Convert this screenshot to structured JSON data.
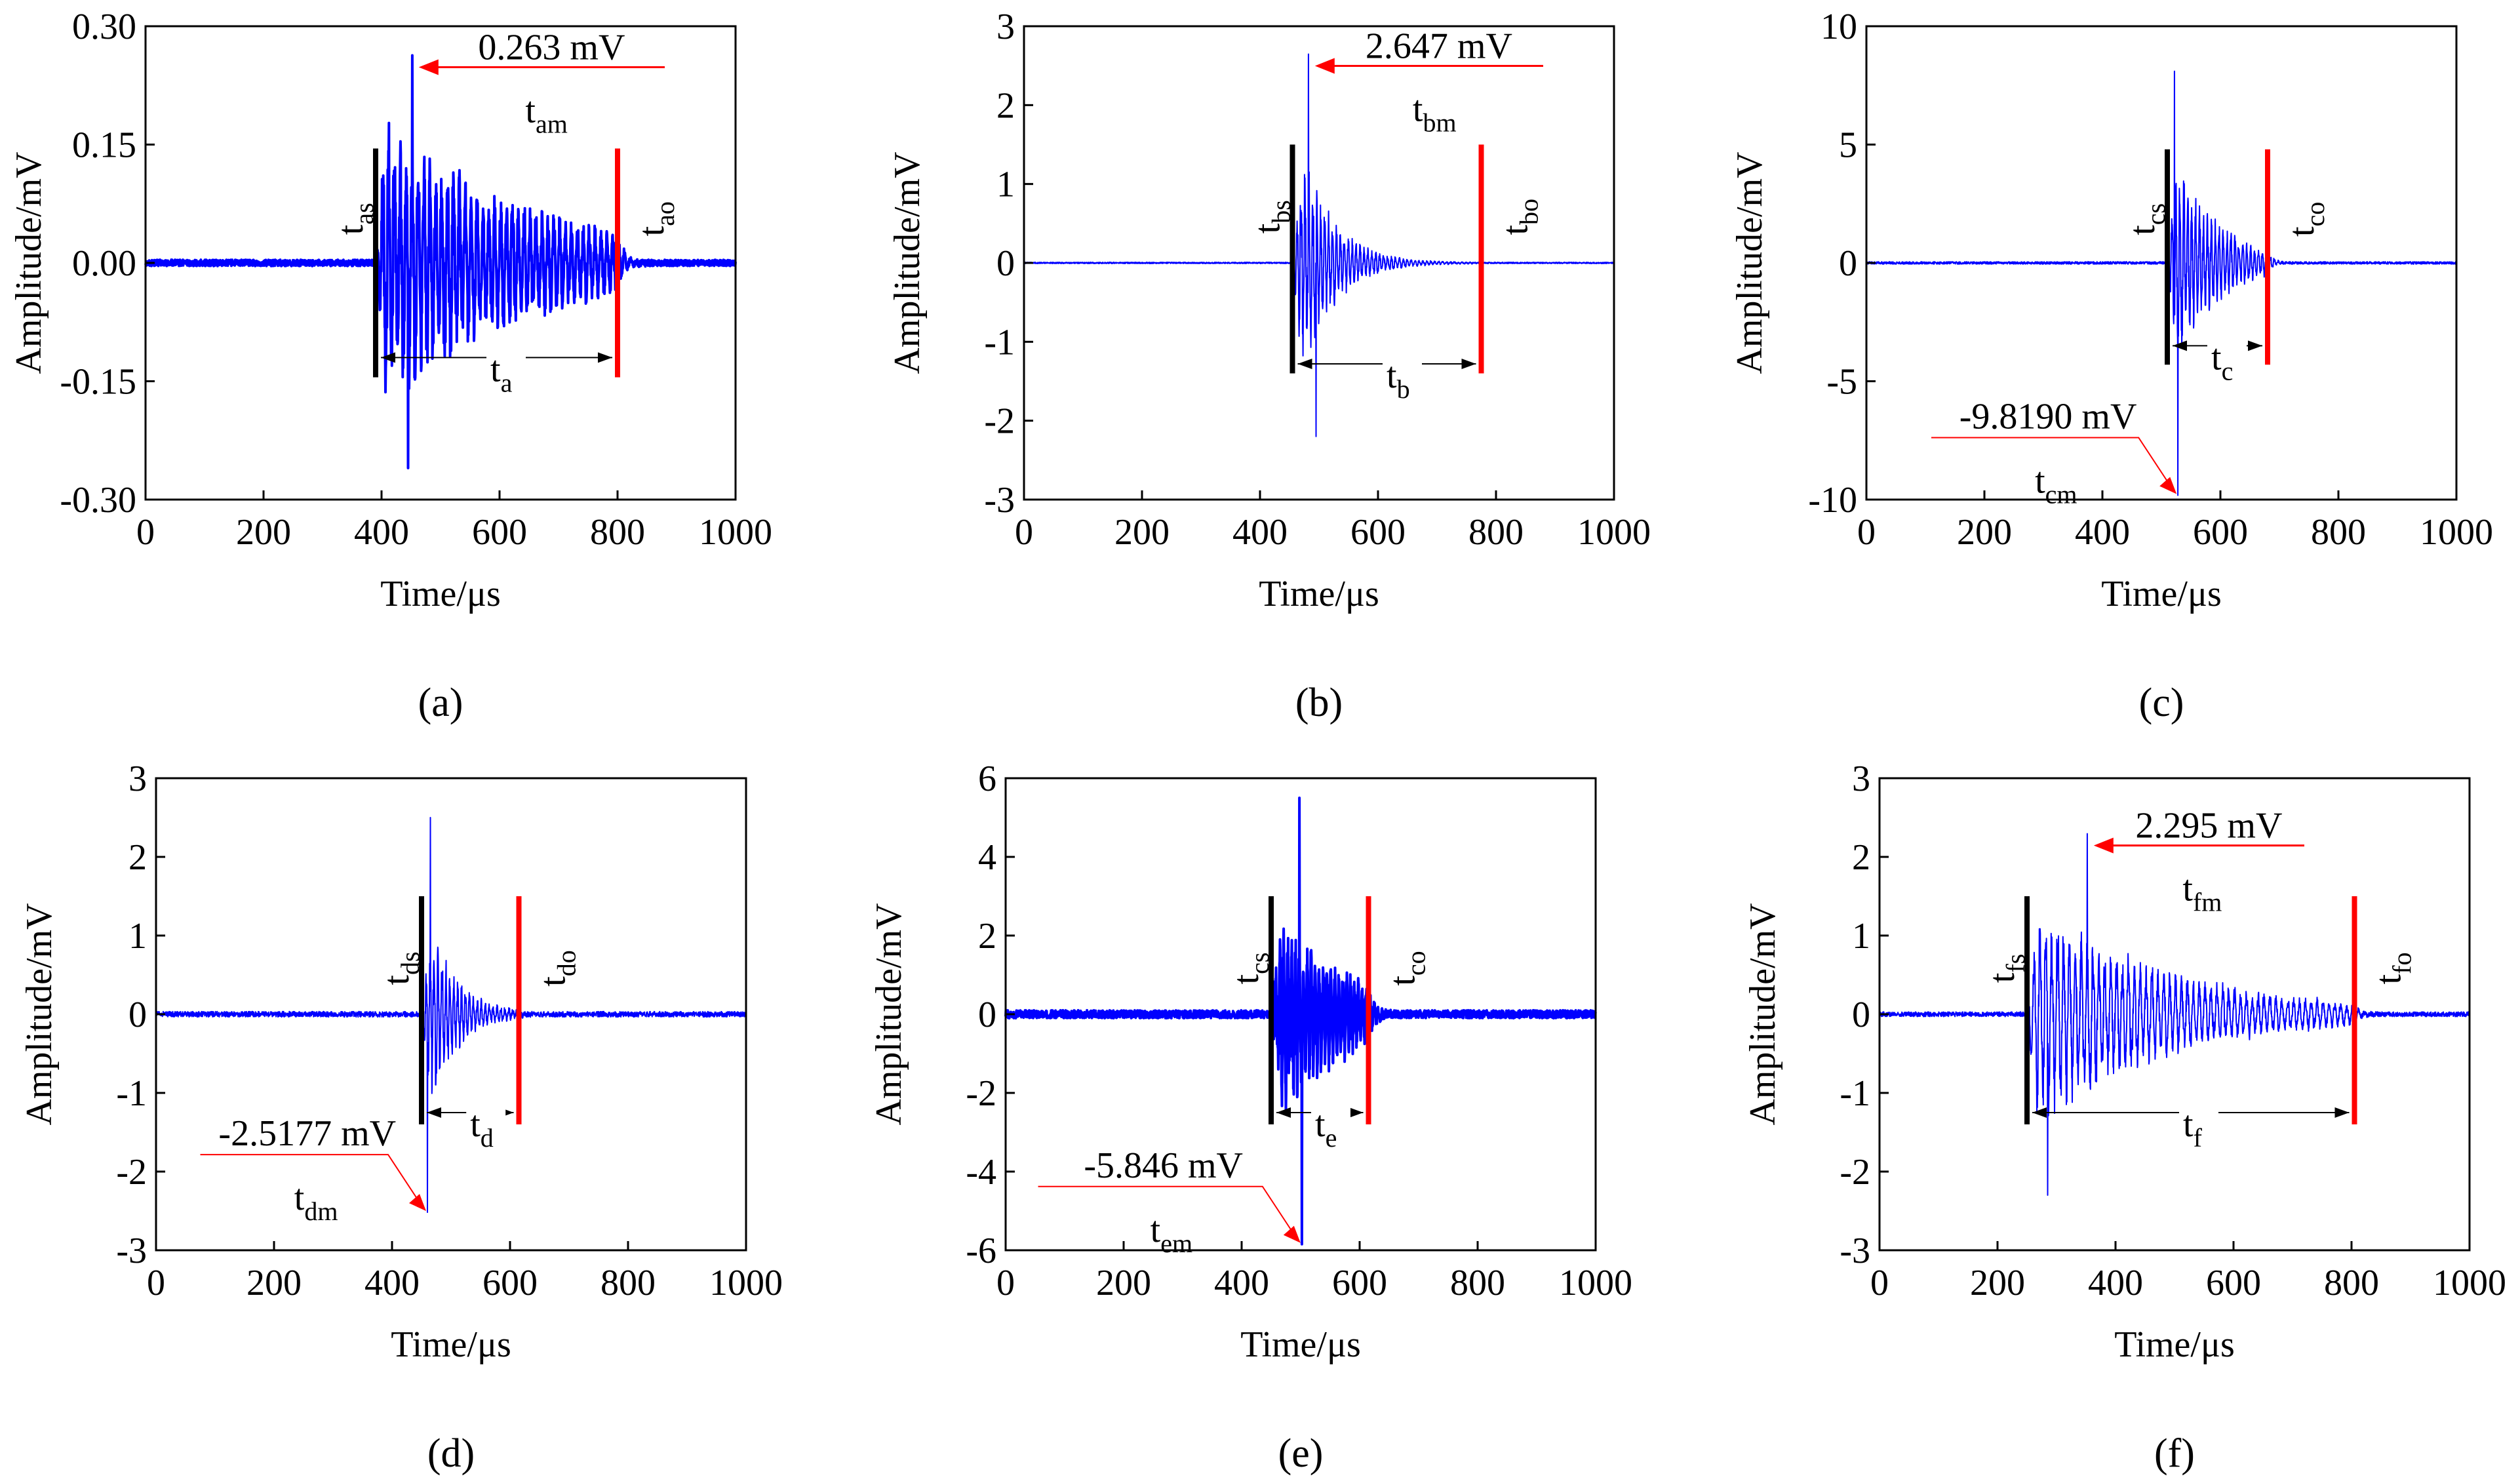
{
  "figure": {
    "colors": {
      "signal": "#0000ff",
      "start_marker": "#000000",
      "end_marker": "#ff0000",
      "arrow": "#ff0000",
      "axis": "#000000"
    }
  },
  "chart_data": [
    {
      "type": "line",
      "panel_label": "(a)",
      "xlabel": "Time/μs",
      "ylabel": "Amplitude/mV",
      "xlim": [
        0,
        1000
      ],
      "ylim": [
        -0.3,
        0.3
      ],
      "xticks": [
        0,
        200,
        400,
        600,
        800,
        1000
      ],
      "xtick_labels": [
        "0",
        "200",
        "400",
        "600",
        "800",
        "1000"
      ],
      "yticks": [
        -0.3,
        -0.15,
        0.0,
        0.15,
        0.3
      ],
      "ytick_labels": [
        "-0.30",
        "-0.15",
        "0.00",
        "0.15",
        "0.30"
      ],
      "series": [
        {
          "name": "AE waveform",
          "noise": 0.004,
          "onset": 390,
          "end": 800,
          "peak_time": 452,
          "peak": 0.263,
          "neg_peak_time": 445,
          "neg_peak": -0.26,
          "envelope_amp": 0.2,
          "decay_us": 260,
          "osc_freq_mhz": 0.1,
          "stroke_width": 4
        }
      ],
      "markers": [
        {
          "role": "start",
          "time": 390,
          "y_range": [
            -0.145,
            0.145
          ],
          "label": "t",
          "sub": "as"
        },
        {
          "role": "end",
          "time": 800,
          "y_range": [
            -0.145,
            0.145
          ],
          "label": "t",
          "sub": "ao"
        }
      ],
      "duration": {
        "from": 390,
        "to": 800,
        "y": -0.12,
        "label": "t",
        "sub": "a",
        "label_time": 600
      },
      "peak_annotation": {
        "value_text": "0.263 mV",
        "time": 452,
        "y": 0.263,
        "line_to_time": 880,
        "time_label": "t",
        "time_sub": "am",
        "text_side": "right"
      }
    },
    {
      "type": "line",
      "panel_label": "(b)",
      "xlabel": "Time/μs",
      "ylabel": "Amplitude/mV",
      "xlim": [
        0,
        1000
      ],
      "ylim": [
        -3,
        3
      ],
      "xticks": [
        0,
        200,
        400,
        600,
        800,
        1000
      ],
      "xtick_labels": [
        "0",
        "200",
        "400",
        "600",
        "800",
        "1000"
      ],
      "yticks": [
        -3,
        -2,
        -1,
        0,
        1,
        2,
        3
      ],
      "ytick_labels": [
        "-3",
        "-2",
        "-1",
        "0",
        "1",
        "2",
        "3"
      ],
      "series": [
        {
          "name": "AE waveform",
          "noise": 0.008,
          "onset": 455,
          "end": 775,
          "peak_time": 482,
          "peak": 2.647,
          "neg_peak_time": 495,
          "neg_peak": -2.2,
          "envelope_amp": 2.0,
          "decay_us": 55,
          "osc_freq_mhz": 0.15,
          "stroke_width": 2
        }
      ],
      "markers": [
        {
          "role": "start",
          "time": 455,
          "y_range": [
            -1.4,
            1.5
          ],
          "label": "t",
          "sub": "bs"
        },
        {
          "role": "end",
          "time": 775,
          "y_range": [
            -1.4,
            1.5
          ],
          "label": "t",
          "sub": "bo"
        }
      ],
      "duration": {
        "from": 455,
        "to": 775,
        "y": -1.28,
        "label": "t",
        "sub": "b",
        "label_time": 630
      },
      "peak_annotation": {
        "value_text": "2.647 mV",
        "time": 482,
        "y": 2.647,
        "line_to_time": 880,
        "time_label": "t",
        "time_sub": "bm",
        "text_side": "right"
      }
    },
    {
      "type": "line",
      "panel_label": "(c)",
      "xlabel": "Time/μs",
      "ylabel": "Amplitude/mV",
      "xlim": [
        0,
        1000
      ],
      "ylim": [
        -10,
        10
      ],
      "xticks": [
        0,
        200,
        400,
        600,
        800,
        1000
      ],
      "xtick_labels": [
        "0",
        "200",
        "400",
        "600",
        "800",
        "1000"
      ],
      "yticks": [
        -10,
        -5,
        0,
        5,
        10
      ],
      "ytick_labels": [
        "-10",
        "-5",
        "0",
        "5",
        "10"
      ],
      "series": [
        {
          "name": "AE waveform",
          "noise": 0.05,
          "onset": 510,
          "end": 680,
          "peak_time": 522,
          "peak": 8.1,
          "neg_peak_time": 528,
          "neg_peak": -9.819,
          "envelope_amp": 6.0,
          "decay_us": 70,
          "osc_freq_mhz": 0.15,
          "stroke_width": 2
        }
      ],
      "markers": [
        {
          "role": "start",
          "time": 510,
          "y_range": [
            -4.3,
            4.8
          ],
          "label": "t",
          "sub": "cs"
        },
        {
          "role": "end",
          "time": 680,
          "y_range": [
            -4.3,
            4.8
          ],
          "label": "t",
          "sub": "co"
        }
      ],
      "duration": {
        "from": 510,
        "to": 680,
        "y": -3.5,
        "label": "t",
        "sub": "c",
        "label_time": 600
      },
      "peak_annotation": {
        "value_text": "-9.8190 mV",
        "time": 528,
        "y": -9.819,
        "line_to_time": 110,
        "time_label": "t",
        "time_sub": "cm",
        "text_side": "left"
      }
    },
    {
      "type": "line",
      "panel_label": "(d)",
      "xlabel": "Time/μs",
      "ylabel": "Amplitude/mV",
      "xlim": [
        0,
        1000
      ],
      "ylim": [
        -3,
        3
      ],
      "xticks": [
        0,
        200,
        400,
        600,
        800,
        1000
      ],
      "xtick_labels": [
        "0",
        "200",
        "400",
        "600",
        "800",
        "1000"
      ],
      "yticks": [
        -3,
        -2,
        -1,
        0,
        1,
        2,
        3
      ],
      "ytick_labels": [
        "-3",
        "-2",
        "-1",
        "0",
        "1",
        "2",
        "3"
      ],
      "series": [
        {
          "name": "AE waveform",
          "noise": 0.035,
          "onset": 450,
          "end": 615,
          "peak_time": 465,
          "peak": 2.5,
          "neg_peak_time": 460,
          "neg_peak": -2.5177,
          "envelope_amp": 1.8,
          "decay_us": 45,
          "osc_freq_mhz": 0.15,
          "stroke_width": 2
        }
      ],
      "markers": [
        {
          "role": "start",
          "time": 450,
          "y_range": [
            -1.4,
            1.5
          ],
          "label": "t",
          "sub": "ds"
        },
        {
          "role": "end",
          "time": 615,
          "y_range": [
            -1.4,
            1.5
          ],
          "label": "t",
          "sub": "do"
        }
      ],
      "duration": {
        "from": 450,
        "to": 615,
        "y": -1.25,
        "label": "t",
        "sub": "d",
        "label_time": 548
      },
      "peak_annotation": {
        "value_text": "-2.5177 mV",
        "time": 460,
        "y": -2.5177,
        "line_to_time": 75,
        "time_label": "t",
        "time_sub": "dm",
        "text_side": "left"
      }
    },
    {
      "type": "line",
      "panel_label": "(e)",
      "xlabel": "Time/μs",
      "ylabel": "Amplitude/mV",
      "xlim": [
        0,
        1000
      ],
      "ylim": [
        -6,
        6
      ],
      "xticks": [
        0,
        200,
        400,
        600,
        800,
        1000
      ],
      "xtick_labels": [
        "0",
        "200",
        "400",
        "600",
        "800",
        "1000"
      ],
      "yticks": [
        -6,
        -4,
        -2,
        0,
        2,
        4,
        6
      ],
      "ytick_labels": [
        "-6",
        "-4",
        "-2",
        "0",
        "2",
        "4",
        "6"
      ],
      "series": [
        {
          "name": "AE waveform",
          "noise": 0.1,
          "onset": 450,
          "end": 615,
          "peak_time": 498,
          "peak": 5.5,
          "neg_peak_time": 502,
          "neg_peak": -5.846,
          "envelope_amp": 3.0,
          "decay_us": 130,
          "osc_freq_mhz": 0.15,
          "stroke_width": 4
        }
      ],
      "markers": [
        {
          "role": "start",
          "time": 450,
          "y_range": [
            -2.8,
            3.0
          ],
          "label": "t",
          "sub": "cs"
        },
        {
          "role": "end",
          "time": 615,
          "y_range": [
            -2.8,
            3.0
          ],
          "label": "t",
          "sub": "co"
        }
      ],
      "duration": {
        "from": 450,
        "to": 615,
        "y": -2.5,
        "label": "t",
        "sub": "e",
        "label_time": 540
      },
      "peak_annotation": {
        "value_text": "-5.846 mV",
        "time": 502,
        "y": -5.846,
        "line_to_time": 55,
        "time_label": "t",
        "time_sub": "em",
        "text_side": "left"
      }
    },
    {
      "type": "line",
      "panel_label": "(f)",
      "xlabel": "Time/μs",
      "ylabel": "Amplitude/mV",
      "xlim": [
        0,
        1000
      ],
      "ylim": [
        -3,
        3
      ],
      "xticks": [
        0,
        200,
        400,
        600,
        800,
        1000
      ],
      "xtick_labels": [
        "0",
        "200",
        "400",
        "600",
        "800",
        "1000"
      ],
      "yticks": [
        -3,
        -2,
        -1,
        0,
        1,
        2,
        3
      ],
      "ytick_labels": [
        "-3",
        "-2",
        "-1",
        "0",
        "1",
        "2",
        "3"
      ],
      "series": [
        {
          "name": "AE waveform",
          "noise": 0.03,
          "onset": 250,
          "end": 805,
          "peak_time": 352,
          "peak": 2.295,
          "neg_peak_time": 285,
          "neg_peak": -2.3,
          "envelope_amp": 1.6,
          "decay_us": 230,
          "osc_freq_mhz": 0.1,
          "stroke_width": 2
        }
      ],
      "markers": [
        {
          "role": "start",
          "time": 250,
          "y_range": [
            -1.4,
            1.5
          ],
          "label": "t",
          "sub": "fs"
        },
        {
          "role": "end",
          "time": 805,
          "y_range": [
            -1.4,
            1.5
          ],
          "label": "t",
          "sub": "fo"
        }
      ],
      "duration": {
        "from": 250,
        "to": 805,
        "y": -1.25,
        "label": "t",
        "sub": "f",
        "label_time": 530
      },
      "peak_annotation": {
        "value_text": "2.295 mV",
        "time": 352,
        "y": 2.295,
        "line_to_time": 720,
        "time_label": "t",
        "time_sub": "fm",
        "text_side": "right"
      }
    }
  ]
}
